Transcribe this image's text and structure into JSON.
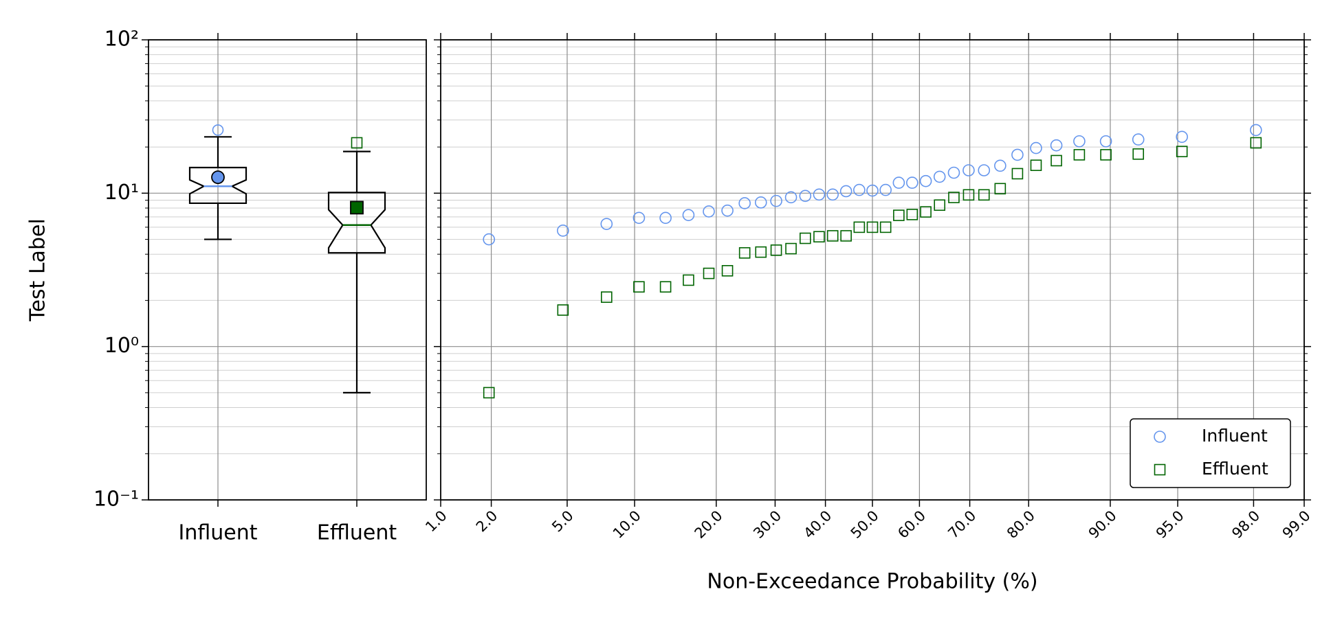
{
  "chart_data": [
    {
      "type": "boxplot",
      "ylabel": "Test Label",
      "log_y": true,
      "grid": true,
      "ylim": [
        0.1,
        100
      ],
      "yticks": [
        {
          "value": 0.1,
          "label": "10⁻¹"
        },
        {
          "value": 1,
          "label": "10⁰"
        },
        {
          "value": 10,
          "label": "10¹"
        },
        {
          "value": 100,
          "label": "10²"
        }
      ],
      "categories": [
        "Influent",
        "Effluent"
      ],
      "boxes": [
        {
          "color": "#6495ed",
          "marker": "circle",
          "whislo": 5.0,
          "q1": 8.6,
          "med": 11.1,
          "q3": 14.7,
          "whishi": 23.3,
          "notch": [
            9.9,
            12.2
          ],
          "mean": 12.7,
          "fliers": [
            25.8
          ]
        },
        {
          "color": "#006400",
          "marker": "square",
          "whislo": 0.5,
          "q1": 4.08,
          "med": 6.2,
          "q3": 10.1,
          "whishi": 18.7,
          "notch": [
            4.4,
            7.8
          ],
          "mean": 8.05,
          "fliers": [
            21.3
          ]
        }
      ]
    },
    {
      "type": "probability",
      "xlabel": "Non-Exceedance Probability (%)",
      "log_y": true,
      "grid": true,
      "xlim": [
        1,
        99
      ],
      "ylim": [
        0.1,
        100
      ],
      "xticks": [
        {
          "value": 1,
          "label": "1.0"
        },
        {
          "value": 2,
          "label": "2.0"
        },
        {
          "value": 5,
          "label": "5.0"
        },
        {
          "value": 10,
          "label": "10.0"
        },
        {
          "value": 20,
          "label": "20.0"
        },
        {
          "value": 30,
          "label": "30.0"
        },
        {
          "value": 40,
          "label": "40.0"
        },
        {
          "value": 50,
          "label": "50.0"
        },
        {
          "value": 60,
          "label": "60.0"
        },
        {
          "value": 70,
          "label": "70.0"
        },
        {
          "value": 80,
          "label": "80.0"
        },
        {
          "value": 90,
          "label": "90.0"
        },
        {
          "value": 95,
          "label": "95.0"
        },
        {
          "value": 98,
          "label": "98.0"
        },
        {
          "value": 99,
          "label": "99.0"
        }
      ],
      "legend": "lower right",
      "series": [
        {
          "name": "Influent",
          "color": "#6495ed",
          "marker": "circle",
          "x": [
            1.94,
            4.77,
            7.6,
            10.42,
            13.25,
            16.08,
            18.9,
            21.73,
            24.56,
            27.39,
            30.21,
            33.04,
            35.87,
            38.69,
            41.52,
            44.35,
            47.17,
            50.0,
            52.83,
            55.65,
            58.48,
            61.31,
            64.13,
            66.96,
            69.79,
            72.61,
            75.44,
            78.27,
            81.1,
            83.92,
            86.75,
            89.58,
            92.4,
            95.23,
            98.06
          ],
          "values": [
            5.0,
            5.7,
            6.3,
            6.9,
            6.9,
            7.2,
            7.6,
            7.7,
            8.6,
            8.7,
            8.9,
            9.4,
            9.6,
            9.8,
            9.8,
            10.3,
            10.5,
            10.4,
            10.5,
            11.7,
            11.7,
            12.0,
            12.8,
            13.6,
            14.1,
            14.1,
            15.1,
            17.8,
            19.7,
            20.5,
            21.8,
            21.8,
            22.4,
            23.3,
            25.8
          ]
        },
        {
          "name": "Effluent",
          "color": "#006400",
          "marker": "square",
          "x": [
            1.94,
            4.77,
            7.6,
            10.42,
            13.25,
            16.08,
            18.9,
            21.73,
            24.56,
            27.39,
            30.21,
            33.04,
            35.87,
            38.69,
            41.52,
            44.35,
            47.17,
            50.0,
            52.83,
            55.65,
            58.48,
            61.31,
            64.13,
            66.96,
            69.79,
            72.61,
            75.44,
            78.27,
            81.1,
            83.92,
            86.75,
            89.58,
            92.4,
            95.23,
            98.06
          ],
          "values": [
            0.5,
            1.73,
            2.1,
            2.45,
            2.45,
            2.71,
            3.0,
            3.12,
            4.08,
            4.13,
            4.25,
            4.35,
            5.08,
            5.2,
            5.27,
            5.27,
            6.0,
            6.0,
            6.0,
            7.17,
            7.26,
            7.55,
            8.36,
            9.38,
            9.75,
            9.75,
            10.7,
            13.4,
            15.2,
            16.3,
            17.8,
            17.8,
            18.0,
            18.7,
            21.3
          ]
        }
      ]
    }
  ]
}
